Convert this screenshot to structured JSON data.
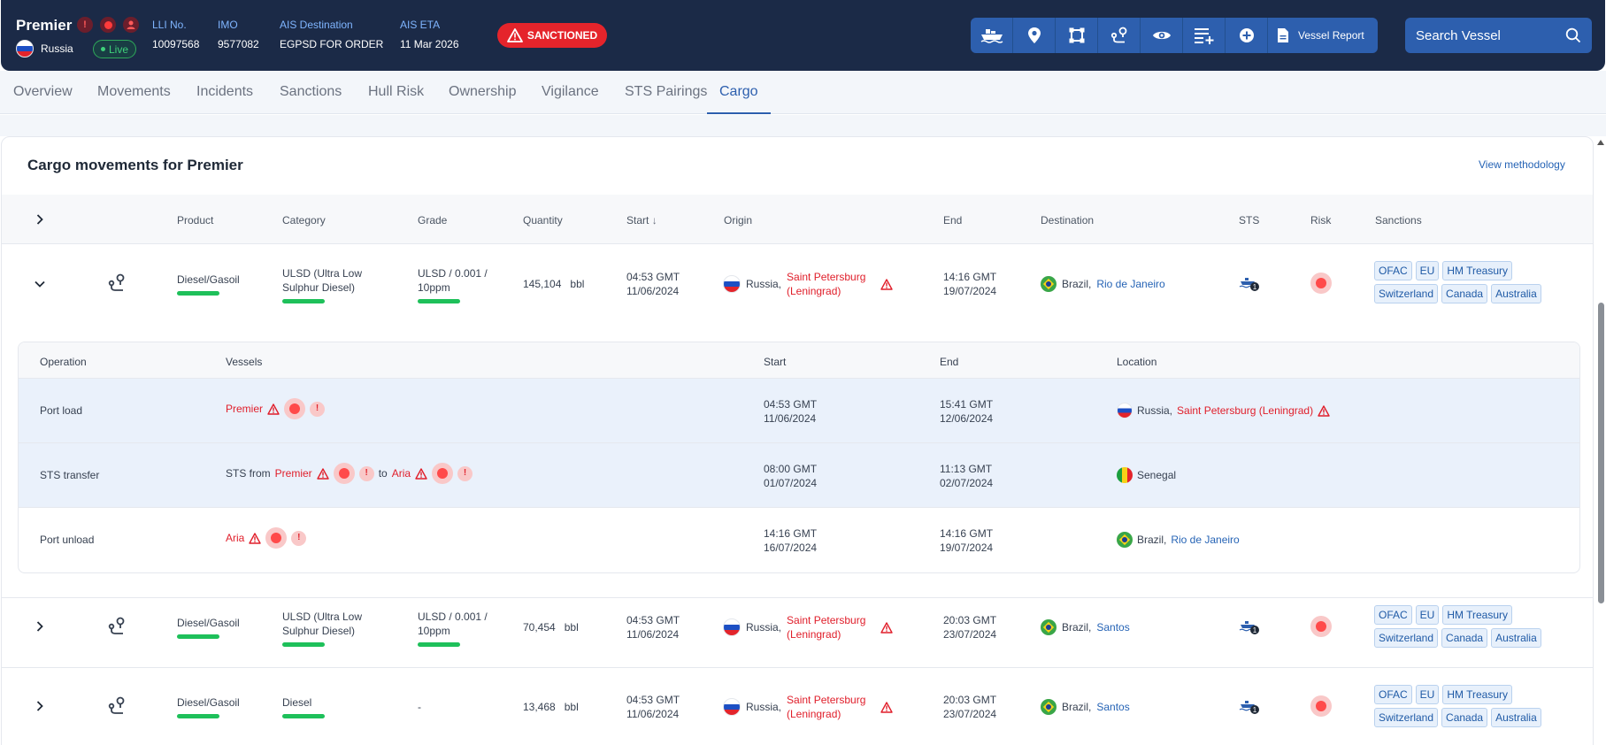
{
  "vessel": {
    "name": "Premier",
    "flag_country": "Russia",
    "live_label": "Live",
    "lli_label": "LLI No.",
    "lli_value": "10097568",
    "imo_label": "IMO",
    "imo_value": "9577082",
    "ais_dest_label": "AIS Destination",
    "ais_dest_value": "EGPSD FOR ORDER",
    "ais_eta_label": "AIS ETA",
    "ais_eta_value": "11 Mar 2026",
    "status_badge": "SANCTIONED"
  },
  "toolbar": {
    "icons": [
      "ship-icon",
      "location-pin-icon",
      "polygon-icon",
      "route-icon",
      "eye-icon",
      "add-list-icon",
      "plus-circle-icon"
    ],
    "report_label": "Vessel Report"
  },
  "search": {
    "placeholder": "Search Vessel"
  },
  "tabs": [
    "Overview",
    "Movements",
    "Incidents",
    "Sanctions",
    "Hull Risk",
    "Ownership",
    "Vigilance",
    "STS Pairings",
    "Cargo"
  ],
  "active_tab": "Cargo",
  "card": {
    "title": "Cargo movements for Premier",
    "methodology_link": "View methodology"
  },
  "columns": [
    "Product",
    "Category",
    "Grade",
    "Quantity",
    "Start",
    "Origin",
    "End",
    "Destination",
    "STS",
    "Risk",
    "Sanctions"
  ],
  "rows": [
    {
      "product": "Diesel/Gasoil",
      "category": "ULSD (Ultra Low Sulphur Diesel)",
      "grade": "ULSD / 0.001 / 10ppm",
      "quantity": "145,104",
      "unit": "bbl",
      "start_time": "04:53 GMT",
      "start_date": "11/06/2024",
      "origin_country": "Russia,",
      "origin_port": "Saint Petersburg (Leningrad)",
      "end_time": "14:16 GMT",
      "end_date": "19/07/2024",
      "dest_country": "Brazil,",
      "dest_port": "Rio de Janeiro",
      "sts_count": "1",
      "sanctions": [
        "OFAC",
        "EU",
        "HM Treasury",
        "Switzerland",
        "Canada",
        "Australia"
      ]
    },
    {
      "product": "Diesel/Gasoil",
      "category": "ULSD (Ultra Low Sulphur Diesel)",
      "grade": "ULSD / 0.001 / 10ppm",
      "quantity": "70,454",
      "unit": "bbl",
      "start_time": "04:53 GMT",
      "start_date": "11/06/2024",
      "origin_country": "Russia,",
      "origin_port": "Saint Petersburg (Leningrad)",
      "end_time": "20:03 GMT",
      "end_date": "23/07/2024",
      "dest_country": "Brazil,",
      "dest_port": "Santos",
      "sts_count": "1",
      "sanctions": [
        "OFAC",
        "EU",
        "HM Treasury",
        "Switzerland",
        "Canada",
        "Australia"
      ]
    },
    {
      "product": "Diesel/Gasoil",
      "category": "Diesel",
      "grade": "-",
      "quantity": "13,468",
      "unit": "bbl",
      "start_time": "04:53 GMT",
      "start_date": "11/06/2024",
      "origin_country": "Russia,",
      "origin_port": "Saint Petersburg (Leningrad)",
      "end_time": "20:03 GMT",
      "end_date": "23/07/2024",
      "dest_country": "Brazil,",
      "dest_port": "Santos",
      "sts_count": "1",
      "sanctions": [
        "OFAC",
        "EU",
        "HM Treasury",
        "Switzerland",
        "Canada",
        "Australia"
      ]
    }
  ],
  "operations": {
    "columns": [
      "Operation",
      "Vessels",
      "Start",
      "End",
      "Location"
    ],
    "rows": [
      {
        "operation": "Port load",
        "vessel": "Premier",
        "start_time": "04:53 GMT",
        "start_date": "11/06/2024",
        "end_time": "15:41 GMT",
        "end_date": "12/06/2024",
        "loc_country": "Russia,",
        "loc_port": "Saint Petersburg (Leningrad)"
      },
      {
        "operation": "STS transfer",
        "sts_from": "STS from",
        "vessel": "Premier",
        "to_word": "to",
        "vessel2": "Aria",
        "start_time": "08:00 GMT",
        "start_date": "01/07/2024",
        "end_time": "11:13 GMT",
        "end_date": "02/07/2024",
        "loc_country": "Senegal"
      },
      {
        "operation": "Port unload",
        "vessel": "Aria",
        "start_time": "14:16 GMT",
        "start_date": "16/07/2024",
        "end_time": "14:16 GMT",
        "end_date": "19/07/2024",
        "loc_country": "Brazil,",
        "loc_port": "Rio de Janeiro"
      }
    ]
  }
}
